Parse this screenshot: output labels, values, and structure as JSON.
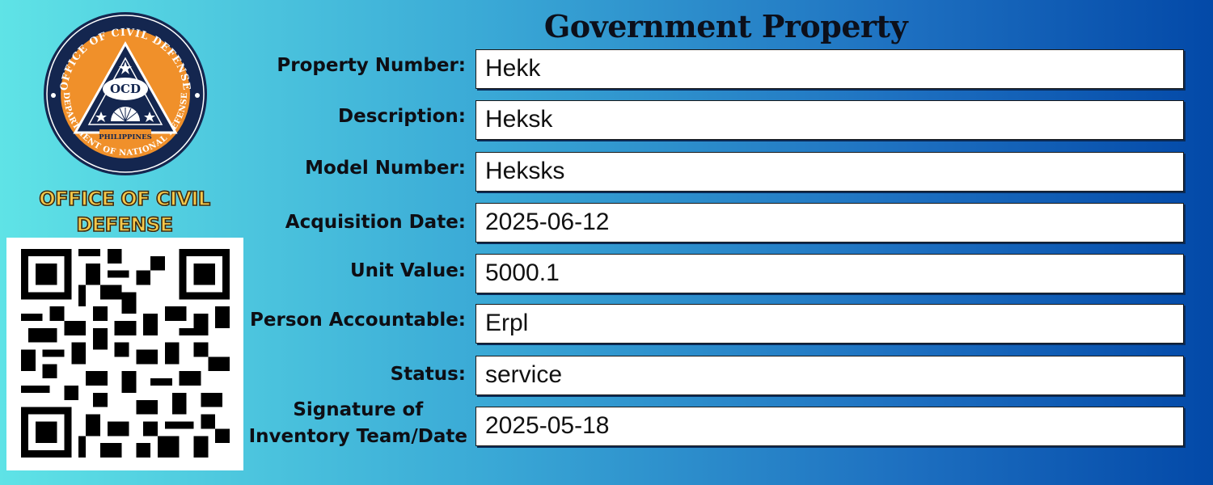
{
  "title": "Government Property",
  "org": {
    "name_line1": "OFFICE OF CIVIL",
    "name_line2": "DEFENSE",
    "seal": {
      "top_arc": "OFFICE OF CIVIL DEFENSE",
      "bottom_arc": "DEPARTMENT OF NATIONAL DEFENSE",
      "acronym": "OCD",
      "country": "PHILIPPINES"
    }
  },
  "fields": [
    {
      "label": "Property Number:",
      "value": "Hekk"
    },
    {
      "label": "Description:",
      "value": "Heksk"
    },
    {
      "label": "Model Number:",
      "value": "Heksks"
    },
    {
      "label": "Acquisition Date:",
      "value": "2025-06-12"
    },
    {
      "label": "Unit Value:",
      "value": "5000.1"
    },
    {
      "label": "Person Accountable:",
      "value": "Erpl"
    },
    {
      "label": "Status:",
      "value": "service"
    },
    {
      "label_line1": "Signature of",
      "label_line2": "Inventory Team/Date",
      "value": "2025-05-18"
    }
  ],
  "colors": {
    "seal_navy": "#14264f",
    "seal_orange": "#f0902a",
    "org_name_gold": "#f5c84a"
  }
}
